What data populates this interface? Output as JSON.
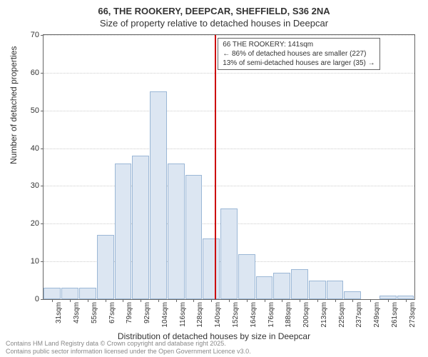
{
  "title_main": "66, THE ROOKERY, DEEPCAR, SHEFFIELD, S36 2NA",
  "title_sub": "Size of property relative to detached houses in Deepcar",
  "y_axis": {
    "label": "Number of detached properties",
    "min": 0,
    "max": 70,
    "ticks": [
      0,
      10,
      20,
      30,
      40,
      50,
      60,
      70
    ]
  },
  "x_axis": {
    "label": "Distribution of detached houses by size in Deepcar",
    "categories": [
      "31sqm",
      "43sqm",
      "55sqm",
      "67sqm",
      "79sqm",
      "92sqm",
      "104sqm",
      "116sqm",
      "128sqm",
      "140sqm",
      "152sqm",
      "164sqm",
      "176sqm",
      "188sqm",
      "200sqm",
      "213sqm",
      "225sqm",
      "237sqm",
      "249sqm",
      "261sqm",
      "273sqm"
    ]
  },
  "bars": {
    "values": [
      3,
      3,
      3,
      17,
      36,
      38,
      55,
      36,
      33,
      16,
      24,
      12,
      6,
      7,
      8,
      5,
      5,
      2,
      0,
      1,
      1
    ],
    "fill_color": "#dce6f2",
    "border_color": "#9bb7d6"
  },
  "reference_line": {
    "position_index": 9.2,
    "color": "#cc0000"
  },
  "annotation": {
    "line1": "66 THE ROOKERY: 141sqm",
    "line2": "← 86% of detached houses are smaller (227)",
    "line3": "13% of semi-detached houses are larger (35) →"
  },
  "footer": {
    "line1": "Contains HM Land Registry data © Crown copyright and database right 2025.",
    "line2": "Contains public sector information licensed under the Open Government Licence v3.0."
  },
  "style": {
    "background": "#ffffff",
    "grid_color": "#cccccc",
    "axis_color": "#666666",
    "text_color": "#333333",
    "footer_color": "#888888",
    "title_fontsize": 13,
    "label_fontsize": 12,
    "tick_fontsize": 11,
    "footer_fontsize": 9
  }
}
